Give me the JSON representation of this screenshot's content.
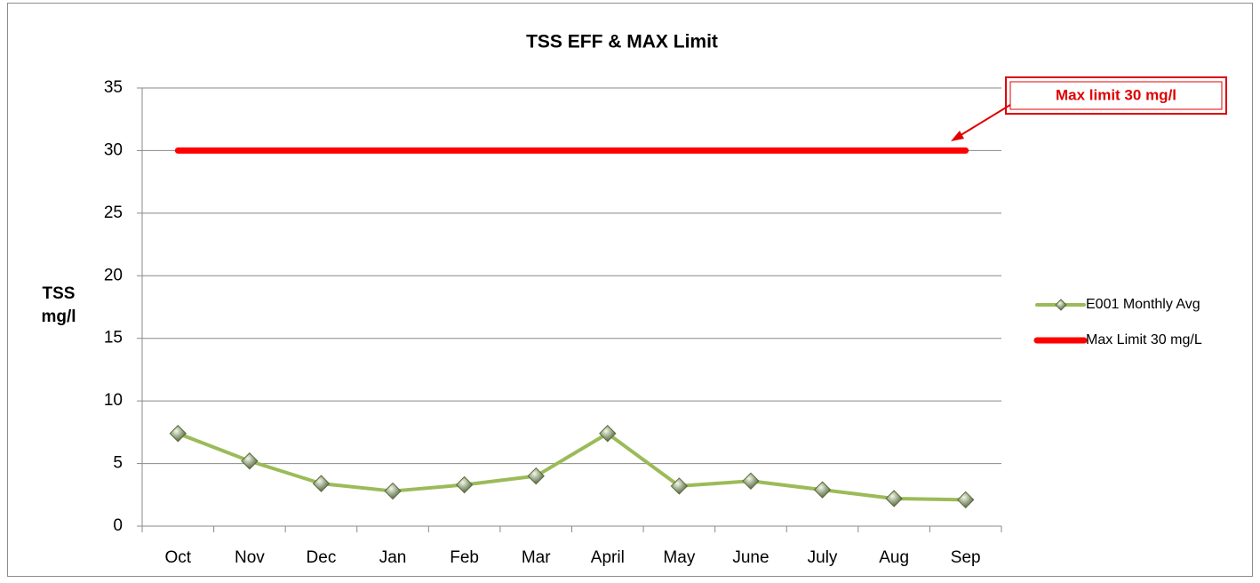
{
  "chart_data": {
    "type": "line",
    "title": "TSS EFF & MAX Limit",
    "ylabel": "TSS mg/l",
    "categories": [
      "Oct",
      "Nov",
      "Dec",
      "Jan",
      "Feb",
      "Mar",
      "April",
      "May",
      "June",
      "July",
      "Aug",
      "Sep"
    ],
    "series": [
      {
        "name": "E001 Monthly Avg",
        "color": "#9bbb59",
        "marker": "diamond",
        "values": [
          7.4,
          5.2,
          3.4,
          2.8,
          3.3,
          4.0,
          7.4,
          3.2,
          3.6,
          2.9,
          2.2,
          2.1
        ]
      },
      {
        "name": "Max Limit 30 mg/L",
        "color": "#ff0000",
        "marker": "none",
        "values": [
          30,
          30,
          30,
          30,
          30,
          30,
          30,
          30,
          30,
          30,
          30,
          30
        ]
      }
    ],
    "ylim": [
      0,
      35
    ],
    "yticks": [
      0,
      5,
      10,
      15,
      20,
      25,
      30,
      35
    ],
    "grid": true,
    "legend": "right",
    "annotation": "Max limit 30 mg/l"
  }
}
